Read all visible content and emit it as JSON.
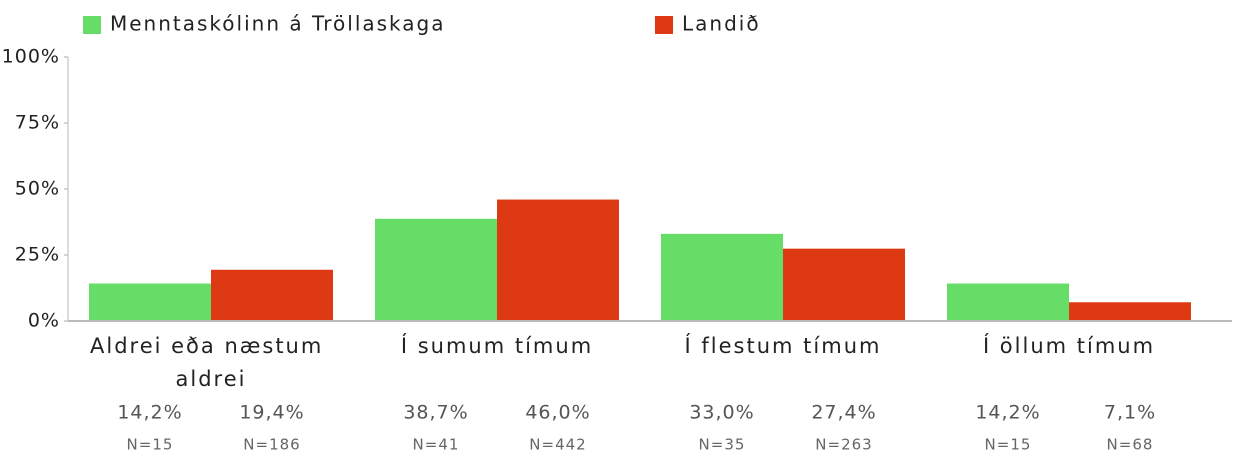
{
  "chart_data": {
    "type": "bar",
    "categories": [
      "Aldrei eða næstum aldrei",
      "Í sumum tímum",
      "Í flestum tímum",
      "Í öllum tímum"
    ],
    "series": [
      {
        "name": "Menntaskólinn á Tröllaskaga",
        "color": "#66dd66",
        "values": [
          14.2,
          38.7,
          33.0,
          14.2
        ],
        "value_labels": [
          "14,2%",
          "38,7%",
          "33,0%",
          "14,2%"
        ],
        "n_labels": [
          "N=15",
          "N=41",
          "N=35",
          "N=15"
        ]
      },
      {
        "name": "Landið",
        "color": "#dd3a14",
        "values": [
          19.4,
          46.0,
          27.4,
          7.1
        ],
        "value_labels": [
          "19,4%",
          "46,0%",
          "27,4%",
          "7,1%"
        ],
        "n_labels": [
          "N=186",
          "N=442",
          "N=263",
          "N=68"
        ]
      }
    ],
    "ylim": [
      0,
      100
    ],
    "yticks": [
      {
        "value": 0,
        "label": "0%"
      },
      {
        "value": 25,
        "label": "25%"
      },
      {
        "value": 50,
        "label": "50%"
      },
      {
        "value": 75,
        "label": "75%"
      },
      {
        "value": 100,
        "label": "100%"
      }
    ]
  }
}
